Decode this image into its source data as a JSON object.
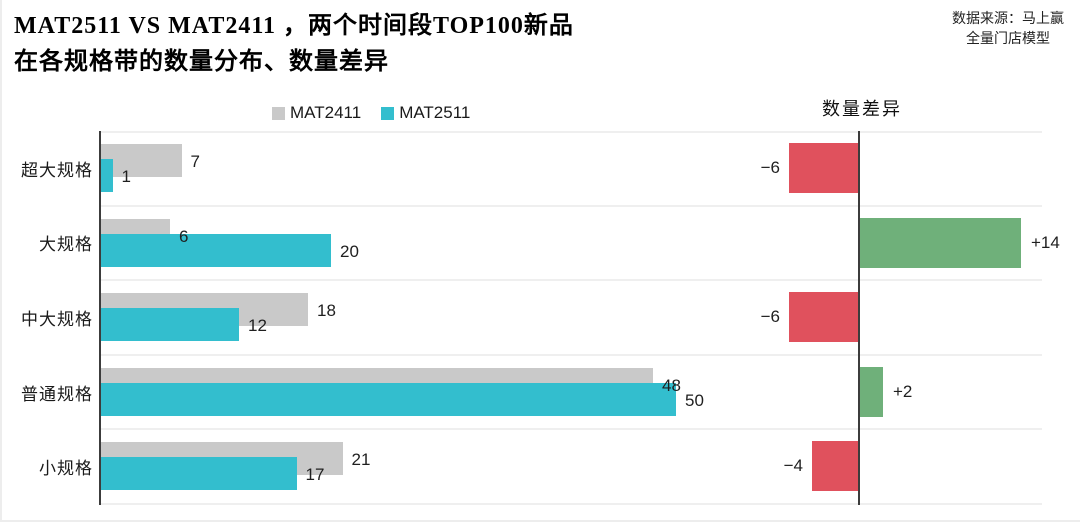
{
  "header": {
    "title_line1": "MAT2511 VS MAT2411 ，两个时间段TOP100新品",
    "title_line2": "在各规格带的数量分布、数量差异",
    "source_line1": "数据来源：马上赢",
    "source_line2": "全量门店模型"
  },
  "legend": {
    "items": [
      {
        "label": "MAT2411",
        "color": "#C9C9C9"
      },
      {
        "label": "MAT2511",
        "color": "#33BECE"
      }
    ]
  },
  "diff_header": "数量差异",
  "chart_data": {
    "type": "bar",
    "orientation": "horizontal",
    "title": "MAT2511 VS MAT2411 ，两个时间段TOP100新品在各规格带的数量分布、数量差异",
    "categories": [
      "超大规格",
      "大规格",
      "中大规格",
      "普通规格",
      "小规格"
    ],
    "series": [
      {
        "name": "MAT2411",
        "color": "#C9C9C9",
        "values": [
          7,
          6,
          18,
          48,
          21
        ]
      },
      {
        "name": "MAT2511",
        "color": "#33BECE",
        "values": [
          1,
          20,
          12,
          50,
          17
        ]
      }
    ],
    "diff": {
      "title": "数量差异",
      "values": [
        -6,
        14,
        -6,
        2,
        -4
      ],
      "labels": [
        "−6",
        "+14",
        "−6",
        "+2",
        "−4"
      ],
      "positive_color": "#6FB07A",
      "negative_color": "#E0515D"
    },
    "xlim": [
      0,
      57
    ],
    "grid": "row-separators",
    "legend_position": "top"
  }
}
